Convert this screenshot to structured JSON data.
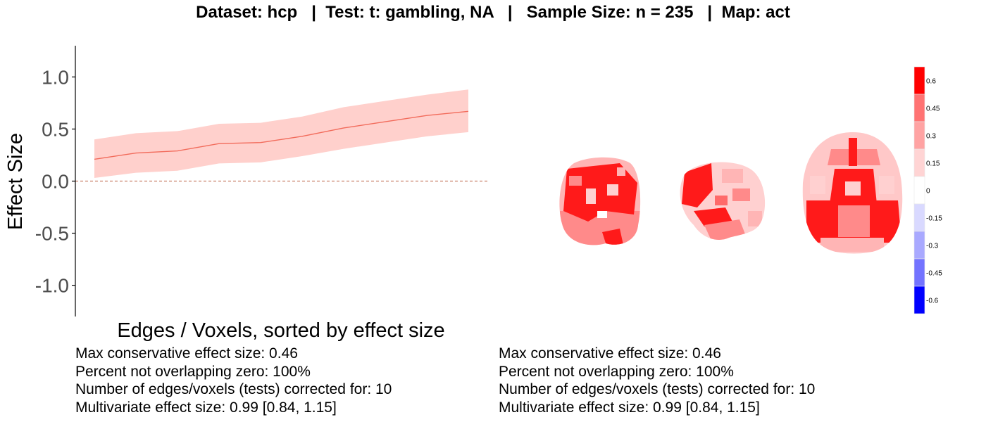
{
  "title": "Dataset: hcp   |  Test: t: gambling, NA   |   Sample Size: n = 235   |  Map: act",
  "colors": {
    "line": "#f26b5b",
    "band": "#ffd0cc",
    "zero_line": "#c8806a",
    "axis": "#000000",
    "tick_text": "#4d4d4d"
  },
  "chart_data": [
    {
      "type": "line",
      "title": "",
      "xlabel": "Edges / Voxels, sorted by effect size",
      "ylabel": "Effect Size",
      "ylim": [
        -1.3,
        1.3
      ],
      "yticks": [
        -1.0,
        -0.5,
        0.0,
        0.5,
        1.0
      ],
      "ytick_labels": [
        "-1.0",
        "-0.5",
        "0.0",
        "0.5",
        "1.0"
      ],
      "grid": false,
      "x": [
        1,
        2,
        3,
        4,
        5,
        6,
        7,
        8,
        9,
        10
      ],
      "series": [
        {
          "values": [
            0.21,
            0.27,
            0.29,
            0.36,
            0.37,
            0.43,
            0.51,
            0.57,
            0.63,
            0.67
          ],
          "lower": [
            0.03,
            0.08,
            0.1,
            0.17,
            0.18,
            0.24,
            0.31,
            0.37,
            0.43,
            0.47
          ],
          "upper": [
            0.4,
            0.46,
            0.48,
            0.55,
            0.56,
            0.62,
            0.71,
            0.77,
            0.83,
            0.88
          ]
        }
      ],
      "reference_line": {
        "y": 0,
        "style": "dashed"
      }
    },
    {
      "type": "heatmap",
      "title": "",
      "views": [
        "coronal",
        "sagittal",
        "axial"
      ],
      "colorbar": {
        "ticks": [
          0.6,
          0.45,
          0.3,
          0.15,
          0,
          -0.15,
          -0.3,
          -0.45,
          -0.6
        ],
        "tick_labels": [
          "0.6",
          "0.45",
          "0.3",
          "0.15",
          "0",
          "-0.15",
          "-0.3",
          "-0.45",
          "-0.6"
        ],
        "bins_top_to_bottom": [
          "#ff0000",
          "#ff7373",
          "#ffa3a3",
          "#ffd4d4",
          "#ffffff",
          "#d9d9ff",
          "#a9a9ff",
          "#7373ff",
          "#0000ff"
        ]
      }
    }
  ],
  "stats_left": [
    "Max conservative effect size: 0.46",
    "Percent not overlapping zero: 100%",
    "Number of edges/voxels (tests) corrected for: 10",
    "Multivariate effect size: 0.99 [0.84, 1.15]"
  ],
  "stats_right": [
    "Max conservative effect size: 0.46",
    "Percent not overlapping zero: 100%",
    "Number of edges/voxels (tests) corrected for: 10",
    "Multivariate effect size: 0.99 [0.84, 1.15]"
  ]
}
